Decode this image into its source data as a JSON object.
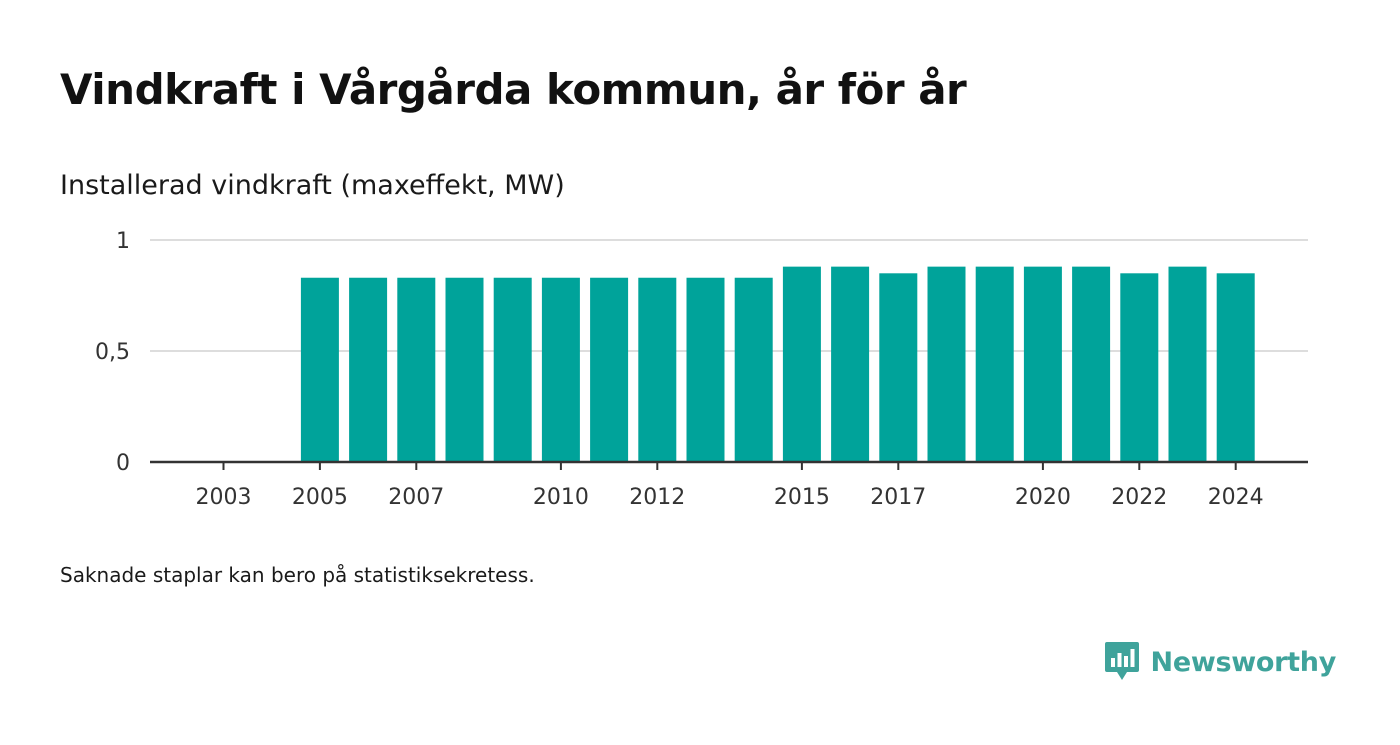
{
  "title": "Vindkraft i Vårgårda kommun, år för år",
  "subtitle": "Installerad vindkraft (maxeffekt, MW)",
  "footnote": "Saknade staplar kan bero på statistiksekretess.",
  "logo": {
    "text": "Newsworthy",
    "icon": "newsworthy-chart-bubble-icon",
    "color": "#3fa39b"
  },
  "chart_data": {
    "type": "bar",
    "categories": [
      "2003",
      "2004",
      "2005",
      "2006",
      "2007",
      "2008",
      "2009",
      "2010",
      "2011",
      "2012",
      "2013",
      "2014",
      "2015",
      "2016",
      "2017",
      "2018",
      "2019",
      "2020",
      "2021",
      "2022",
      "2023",
      "2024"
    ],
    "values": [
      null,
      null,
      0.83,
      0.83,
      0.83,
      0.83,
      0.83,
      0.83,
      0.83,
      0.83,
      0.83,
      0.83,
      0.88,
      0.88,
      0.85,
      0.88,
      0.88,
      0.88,
      0.88,
      0.85,
      0.88,
      0.85
    ],
    "x_tick_labels": [
      "2003",
      "2005",
      "2007",
      "2010",
      "2012",
      "2015",
      "2017",
      "2020",
      "2022",
      "2024"
    ],
    "y_ticks": [
      0,
      0.5,
      1
    ],
    "y_tick_labels": [
      "0",
      "0,5",
      "1"
    ],
    "ylim": [
      0,
      1
    ],
    "xlabel": "",
    "ylabel": "",
    "grid": true,
    "bar_color": "#00a39a",
    "grid_color": "#dddddd",
    "axis_color": "#333333"
  }
}
